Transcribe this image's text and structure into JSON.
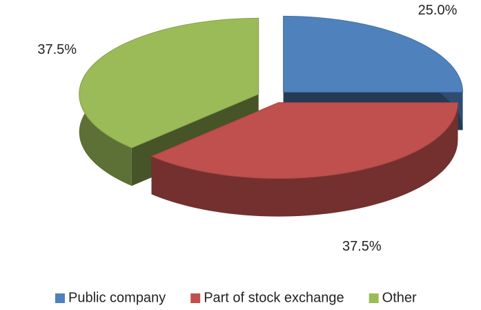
{
  "chart_data": {
    "type": "pie3d",
    "categories": [
      "Public company",
      "Part of stock exchange",
      "Other"
    ],
    "values": [
      25,
      37.5,
      37.5
    ],
    "value_labels": [
      "25.0%",
      "37.5%",
      "37.5%"
    ],
    "colors": [
      "#4f81bd",
      "#c0504d",
      "#9bbb59"
    ],
    "legend": "bottom"
  }
}
